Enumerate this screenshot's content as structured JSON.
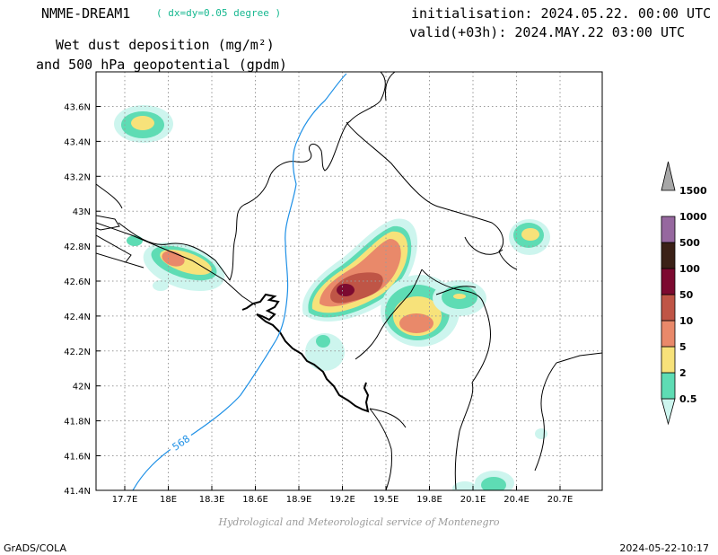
{
  "header": {
    "model": "NMME-DREAM1",
    "resolution": "( dx=dy=0.05 degree )",
    "param_line1": "Wet dust deposition (mg/m²)",
    "param_line2": "and 500 hPa geopotential (gpdm)",
    "init": "initialisation: 2024.05.22. 00:00 UTC",
    "valid": "valid(+03h): 2024.MAY.22 03:00 UTC"
  },
  "map": {
    "lon_labels": [
      "17.7E",
      "18E",
      "18.3E",
      "18.6E",
      "18.9E",
      "19.2E",
      "19.5E",
      "19.8E",
      "20.1E",
      "20.4E",
      "20.7E"
    ],
    "lat_labels": [
      "43.6N",
      "43.4N",
      "43.2N",
      "43N",
      "42.8N",
      "42.6N",
      "42.4N",
      "42.2N",
      "42N",
      "41.8N",
      "41.6N",
      "41.4N"
    ],
    "contour_label": "568",
    "contour_color": "#1e90e6"
  },
  "legend": {
    "levels": [
      {
        "label": "0.5",
        "color": "#cdf5ee"
      },
      {
        "label": "2",
        "color": "#5edcb4"
      },
      {
        "label": "5",
        "color": "#f7e27a"
      },
      {
        "label": "10",
        "color": "#e9896a"
      },
      {
        "label": "50",
        "color": "#bf5546"
      },
      {
        "label": "100",
        "color": "#7c0a30"
      },
      {
        "label": "500",
        "color": "#3b2117"
      },
      {
        "label": "1000",
        "color": "#96689f"
      },
      {
        "label": "1500",
        "color": "#a7a7a7"
      }
    ]
  },
  "footer": {
    "credit": "Hydrological and Meteorological service of Montenegro",
    "software": "GrADS/COLA",
    "timestamp": "2024-05-22-10:17"
  }
}
